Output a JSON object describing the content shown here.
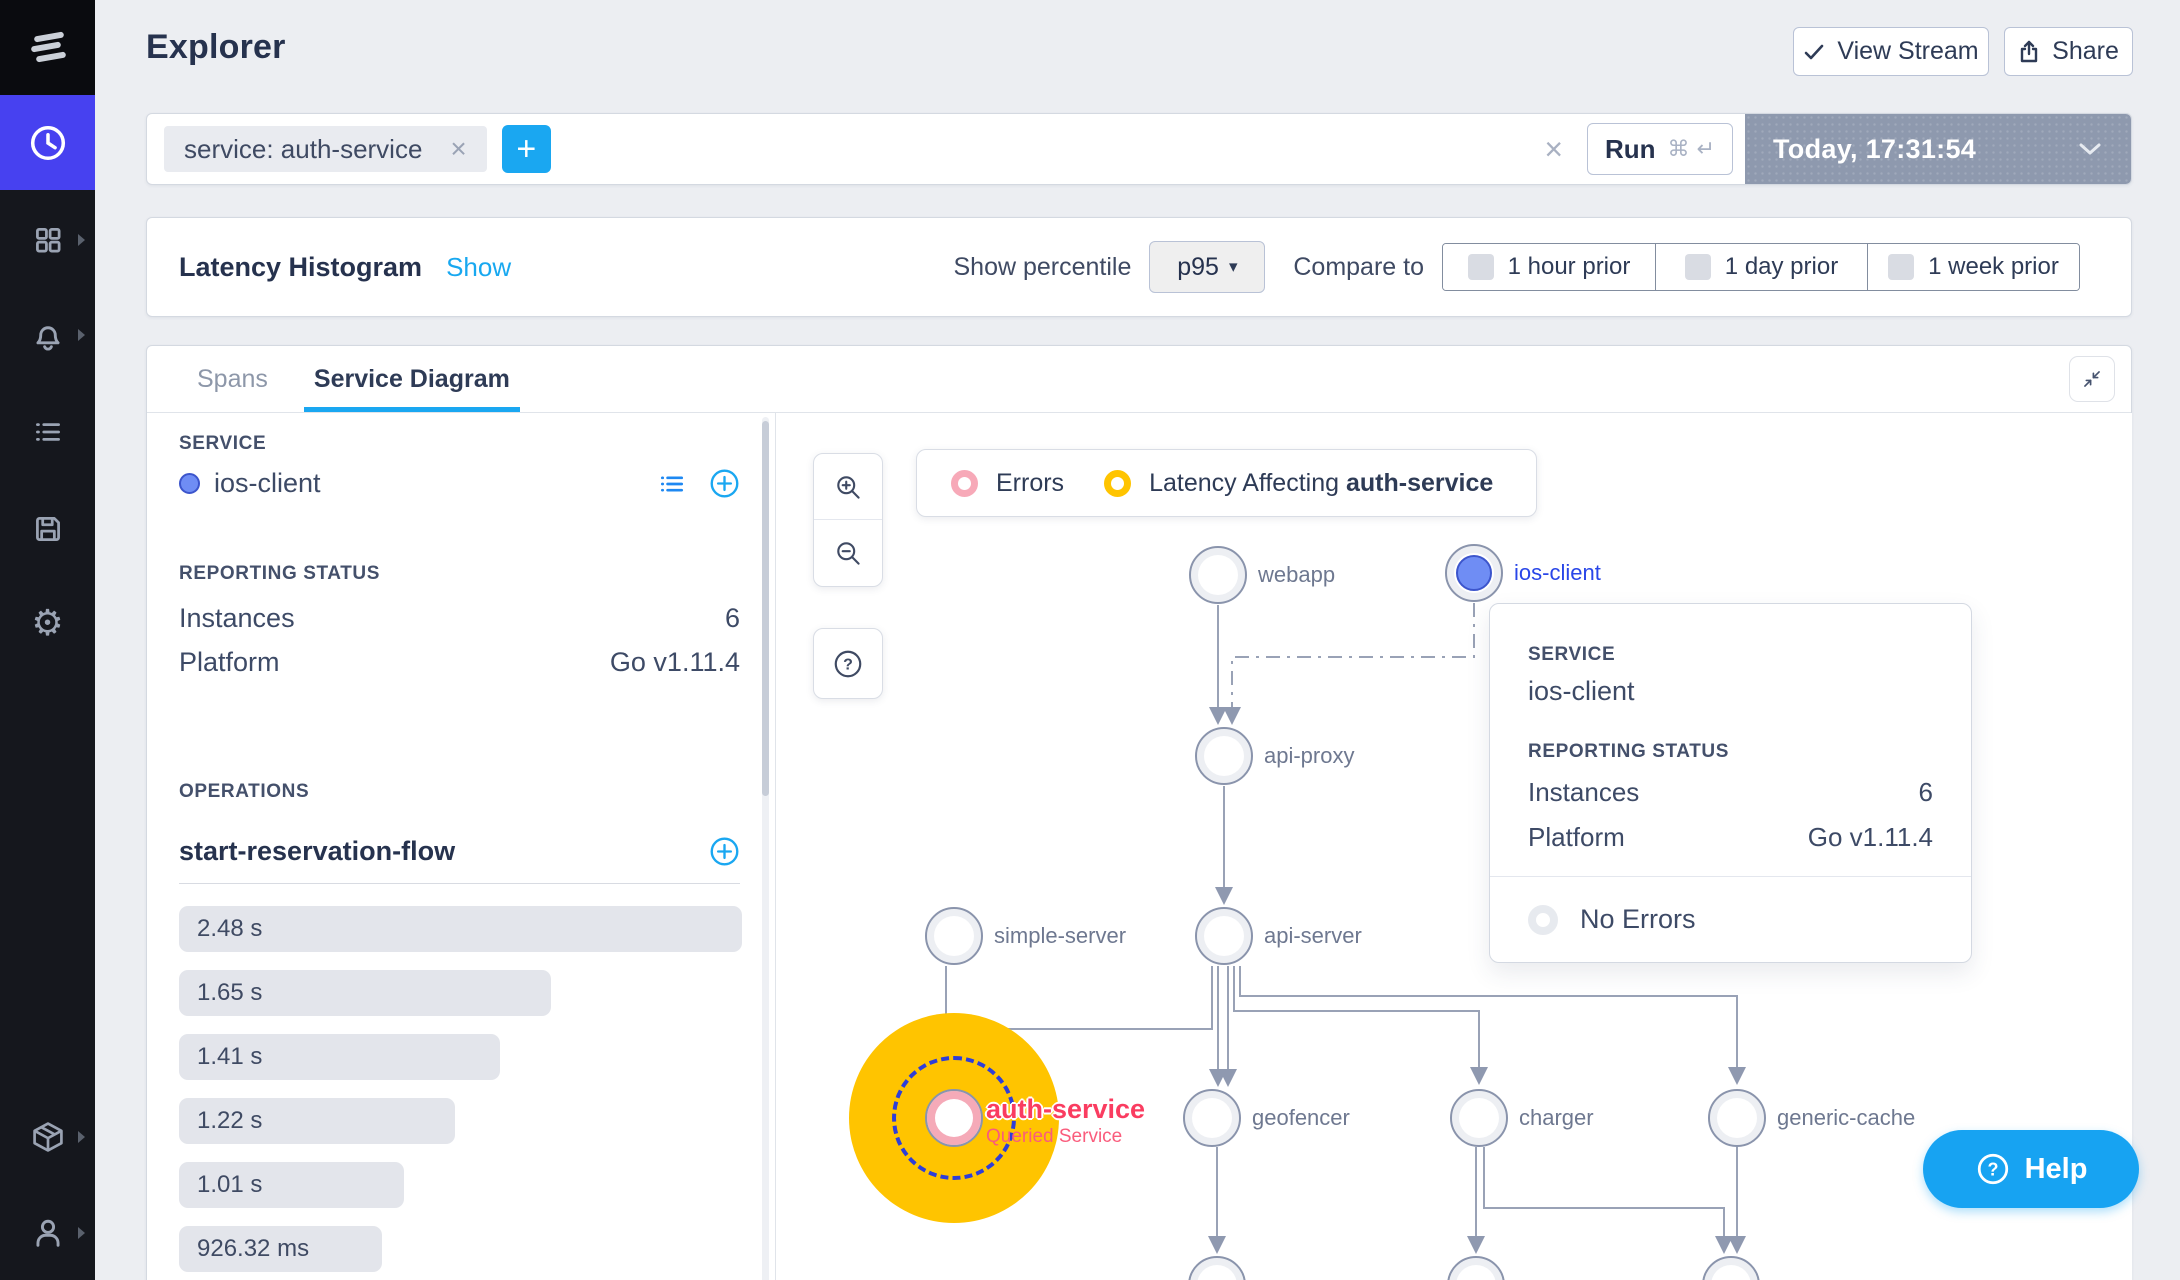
{
  "header": {
    "title": "Explorer",
    "view_stream_label": "View Stream",
    "share_label": "Share"
  },
  "sidebar": {
    "icons": [
      "lightstep-logo",
      "clock",
      "apps",
      "alerts",
      "list",
      "saved",
      "settings",
      "packages",
      "account"
    ]
  },
  "query": {
    "chip_text": "service:  auth-service",
    "chip_remove_icon": "×",
    "add_icon": "+",
    "clear_icon": "×",
    "run_label": "Run",
    "run_shortcut": "⌘ ↵",
    "time_value": "Today, 17:31:54"
  },
  "histogram": {
    "title": "Latency Histogram",
    "show_link": "Show",
    "percentile_label": "Show percentile",
    "percentile_value": "p95",
    "percentile_caret": "▾",
    "compare_label": "Compare to",
    "compare_options": [
      "1 hour prior",
      "1 day prior",
      "1 week prior"
    ]
  },
  "tabs": {
    "spans": "Spans",
    "service_diagram": "Service Diagram"
  },
  "panel": {
    "service_label": "SERVICE",
    "service_name": "ios-client",
    "reporting_label": "REPORTING STATUS",
    "instances_label": "Instances",
    "instances_value": "6",
    "platform_label": "Platform",
    "platform_value": "Go v1.11.4",
    "operations_label": "OPERATIONS",
    "operation_name": "start-reservation-flow",
    "bars": [
      {
        "label": "2.48 s",
        "pct": 100
      },
      {
        "label": "1.65 s",
        "pct": 66
      },
      {
        "label": "1.41 s",
        "pct": 57
      },
      {
        "label": "1.22 s",
        "pct": 49
      },
      {
        "label": "1.01 s",
        "pct": 40
      },
      {
        "label": "926.32 ms",
        "pct": 36
      }
    ]
  },
  "diagram": {
    "legend": {
      "errors": "Errors",
      "latency_prefix": "Latency Affecting",
      "latency_service": "auth-service"
    },
    "nodes": {
      "webapp": "webapp",
      "ios_client": "ios-client",
      "api_proxy": "api-proxy",
      "api_server": "api-server",
      "simple_server": "simple-server",
      "geofencer": "geofencer",
      "charger": "charger",
      "generic_cache": "generic-cache"
    },
    "queried": {
      "name": "auth-service",
      "sublabel": "Queried Service"
    },
    "tooltip": {
      "service_label": "SERVICE",
      "service_name": "ios-client",
      "reporting_label": "REPORTING STATUS",
      "instances_label": "Instances",
      "instances_value": "6",
      "platform_label": "Platform",
      "platform_value": "Go v1.11.4",
      "no_errors": "No Errors"
    }
  },
  "help_label": "Help",
  "colors": {
    "accent_blue": "#1AA7F1",
    "active_nav": "#4741F0",
    "latency_yellow": "#FFC400",
    "error_pink": "#F7A9B8",
    "queried_red": "#FA3C60",
    "time_slate": "#8E99AE"
  }
}
